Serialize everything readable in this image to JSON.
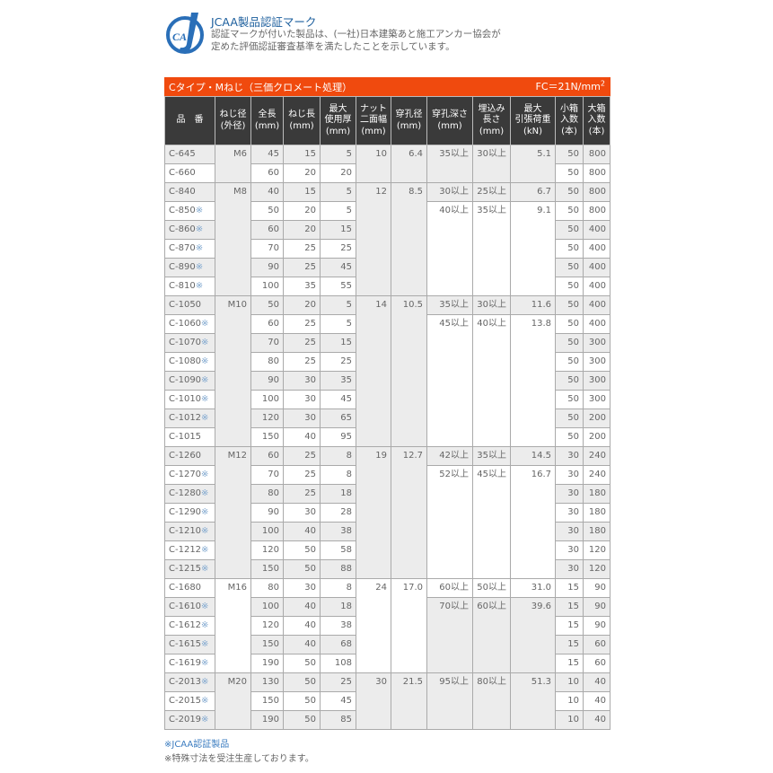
{
  "intro": {
    "logo_text": "CAA",
    "title": "JCAA製品認証マーク",
    "lines": [
      "認証マークが付いた製品は、(一社)日本建築あと施工アンカー協会が",
      "定めた評価認証審査基準を満たしたことを示しています。"
    ]
  },
  "spec": {
    "title": "Cタイプ・Mねじ（三価クロメート処理）",
    "fc": "FC＝21N/mm",
    "fc_sup": "2",
    "headers": [
      "品　番",
      "ねじ径\n(外径)",
      "全長\n(mm)",
      "ねじ長\n(mm)",
      "最大\n使用厚\n(mm)",
      "ナット\n二面幅\n(mm)",
      "穿孔径\n(mm)",
      "穿孔深さ\n(mm)",
      "埋込み\n長さ\n(mm)",
      "最大\n引張荷重\n(kN)",
      "小箱\n入数\n(本)",
      "大箱\n入数\n(本)"
    ],
    "mark_symbol": "※",
    "colors": {
      "bar": "#f04a0e",
      "header": "#3a3a3a",
      "row_alt": "#ececec",
      "mark": "#7fa7cf"
    },
    "groups": [
      {
        "size": "M6",
        "nut": "10",
        "hole": "6.4",
        "subgroups": [
          {
            "depth": "35以上",
            "embed": "30以上",
            "load": "5.1",
            "rows": [
              {
                "code": "C-645",
                "mark": false,
                "length": "45",
                "thread": "15",
                "thick": "5",
                "small": "50",
                "large": "800"
              },
              {
                "code": "C-660",
                "mark": false,
                "length": "60",
                "thread": "20",
                "thick": "20",
                "small": "50",
                "large": "800"
              }
            ]
          }
        ]
      },
      {
        "size": "M8",
        "nut": "12",
        "hole": "8.5",
        "subgroups": [
          {
            "depth": "30以上",
            "embed": "25以上",
            "load": "6.7",
            "rows": [
              {
                "code": "C-840",
                "mark": false,
                "length": "40",
                "thread": "15",
                "thick": "5",
                "small": "50",
                "large": "800"
              }
            ]
          },
          {
            "depth": "40以上",
            "embed": "35以上",
            "load": "9.1",
            "rows": [
              {
                "code": "C-850",
                "mark": true,
                "length": "50",
                "thread": "20",
                "thick": "5",
                "small": "50",
                "large": "800"
              },
              {
                "code": "C-860",
                "mark": true,
                "length": "60",
                "thread": "20",
                "thick": "15",
                "small": "50",
                "large": "400"
              },
              {
                "code": "C-870",
                "mark": true,
                "length": "70",
                "thread": "25",
                "thick": "25",
                "small": "50",
                "large": "400"
              },
              {
                "code": "C-890",
                "mark": true,
                "length": "90",
                "thread": "25",
                "thick": "45",
                "small": "50",
                "large": "400"
              },
              {
                "code": "C-810",
                "mark": true,
                "length": "100",
                "thread": "35",
                "thick": "55",
                "small": "50",
                "large": "400"
              }
            ]
          }
        ]
      },
      {
        "size": "M10",
        "nut": "14",
        "hole": "10.5",
        "subgroups": [
          {
            "depth": "35以上",
            "embed": "30以上",
            "load": "11.6",
            "rows": [
              {
                "code": "C-1050",
                "mark": false,
                "length": "50",
                "thread": "20",
                "thick": "5",
                "small": "50",
                "large": "400"
              }
            ]
          },
          {
            "depth": "45以上",
            "embed": "40以上",
            "load": "13.8",
            "rows": [
              {
                "code": "C-1060",
                "mark": true,
                "length": "60",
                "thread": "25",
                "thick": "5",
                "small": "50",
                "large": "400"
              },
              {
                "code": "C-1070",
                "mark": true,
                "length": "70",
                "thread": "25",
                "thick": "15",
                "small": "50",
                "large": "300"
              },
              {
                "code": "C-1080",
                "mark": true,
                "length": "80",
                "thread": "25",
                "thick": "25",
                "small": "50",
                "large": "300"
              },
              {
                "code": "C-1090",
                "mark": true,
                "length": "90",
                "thread": "30",
                "thick": "35",
                "small": "50",
                "large": "300"
              },
              {
                "code": "C-1010",
                "mark": true,
                "length": "100",
                "thread": "30",
                "thick": "45",
                "small": "50",
                "large": "300"
              },
              {
                "code": "C-1012",
                "mark": true,
                "length": "120",
                "thread": "30",
                "thick": "65",
                "small": "50",
                "large": "200"
              },
              {
                "code": "C-1015",
                "mark": false,
                "length": "150",
                "thread": "40",
                "thick": "95",
                "small": "50",
                "large": "200"
              }
            ]
          }
        ]
      },
      {
        "size": "M12",
        "nut": "19",
        "hole": "12.7",
        "subgroups": [
          {
            "depth": "42以上",
            "embed": "35以上",
            "load": "14.5",
            "rows": [
              {
                "code": "C-1260",
                "mark": false,
                "length": "60",
                "thread": "25",
                "thick": "8",
                "small": "30",
                "large": "240"
              }
            ]
          },
          {
            "depth": "52以上",
            "embed": "45以上",
            "load": "16.7",
            "rows": [
              {
                "code": "C-1270",
                "mark": true,
                "length": "70",
                "thread": "25",
                "thick": "8",
                "small": "30",
                "large": "240"
              },
              {
                "code": "C-1280",
                "mark": true,
                "length": "80",
                "thread": "25",
                "thick": "18",
                "small": "30",
                "large": "180"
              },
              {
                "code": "C-1290",
                "mark": true,
                "length": "90",
                "thread": "30",
                "thick": "28",
                "small": "30",
                "large": "180"
              },
              {
                "code": "C-1210",
                "mark": true,
                "length": "100",
                "thread": "40",
                "thick": "38",
                "small": "30",
                "large": "180"
              },
              {
                "code": "C-1212",
                "mark": true,
                "length": "120",
                "thread": "50",
                "thick": "58",
                "small": "30",
                "large": "120"
              },
              {
                "code": "C-1215",
                "mark": true,
                "length": "150",
                "thread": "50",
                "thick": "88",
                "small": "30",
                "large": "120"
              }
            ]
          }
        ]
      },
      {
        "size": "M16",
        "nut": "24",
        "hole": "17.0",
        "subgroups": [
          {
            "depth": "60以上",
            "embed": "50以上",
            "load": "31.0",
            "rows": [
              {
                "code": "C-1680",
                "mark": false,
                "length": "80",
                "thread": "30",
                "thick": "8",
                "small": "15",
                "large": "90"
              }
            ]
          },
          {
            "depth": "70以上",
            "embed": "60以上",
            "load": "39.6",
            "rows": [
              {
                "code": "C-1610",
                "mark": true,
                "length": "100",
                "thread": "40",
                "thick": "18",
                "small": "15",
                "large": "90"
              },
              {
                "code": "C-1612",
                "mark": true,
                "length": "120",
                "thread": "40",
                "thick": "38",
                "small": "15",
                "large": "90"
              },
              {
                "code": "C-1615",
                "mark": true,
                "length": "150",
                "thread": "40",
                "thick": "68",
                "small": "15",
                "large": "60"
              },
              {
                "code": "C-1619",
                "mark": true,
                "length": "190",
                "thread": "50",
                "thick": "108",
                "small": "15",
                "large": "60"
              }
            ]
          }
        ]
      },
      {
        "size": "M20",
        "nut": "30",
        "hole": "21.5",
        "subgroups": [
          {
            "depth": "95以上",
            "embed": "80以上",
            "load": "51.3",
            "rows": [
              {
                "code": "C-2013",
                "mark": true,
                "length": "130",
                "thread": "50",
                "thick": "25",
                "small": "10",
                "large": "40"
              },
              {
                "code": "C-2015",
                "mark": true,
                "length": "150",
                "thread": "50",
                "thick": "45",
                "small": "10",
                "large": "40"
              },
              {
                "code": "C-2019",
                "mark": true,
                "length": "190",
                "thread": "50",
                "thick": "85",
                "small": "10",
                "large": "40"
              }
            ]
          }
        ]
      }
    ]
  },
  "notes": [
    "※JCAA認証製品",
    "※特殊寸法を受注生産しております。"
  ]
}
